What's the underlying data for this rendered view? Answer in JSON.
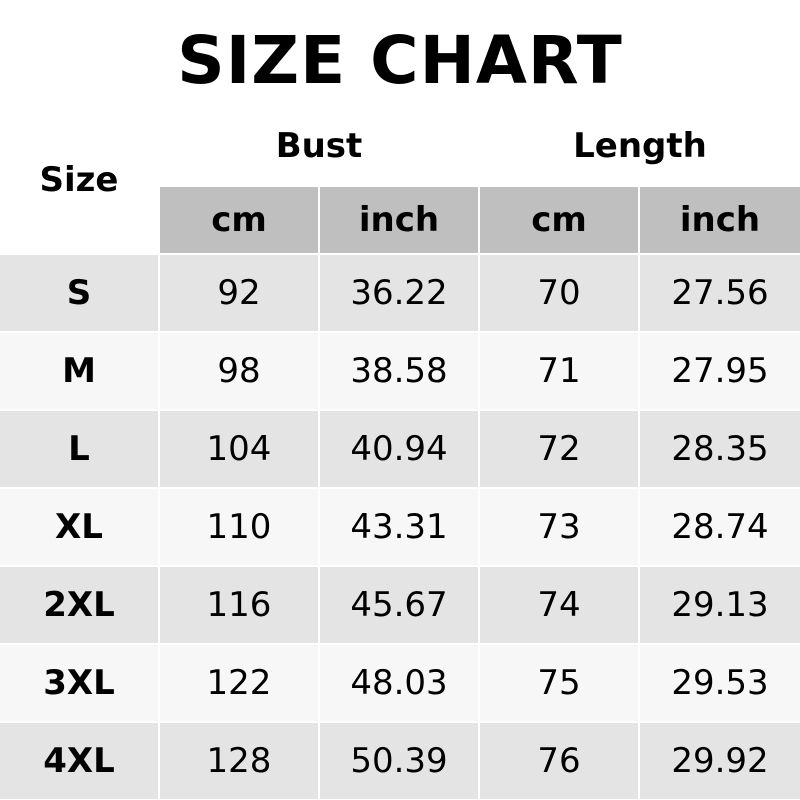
{
  "title": "SIZE CHART",
  "header": {
    "size_label": "Size",
    "groups": [
      "Bust",
      "Length"
    ],
    "units": [
      "cm",
      "inch",
      "cm",
      "inch"
    ]
  },
  "rows": [
    {
      "size": "S",
      "values": [
        "92",
        "36.22",
        "70",
        "27.56"
      ]
    },
    {
      "size": "M",
      "values": [
        "98",
        "38.58",
        "71",
        "27.95"
      ]
    },
    {
      "size": "L",
      "values": [
        "104",
        "40.94",
        "72",
        "28.35"
      ]
    },
    {
      "size": "XL",
      "values": [
        "110",
        "43.31",
        "73",
        "28.74"
      ]
    },
    {
      "size": "2XL",
      "values": [
        "116",
        "45.67",
        "74",
        "29.13"
      ]
    },
    {
      "size": "3XL",
      "values": [
        "122",
        "48.03",
        "75",
        "29.53"
      ]
    },
    {
      "size": "4XL",
      "values": [
        "128",
        "50.39",
        "76",
        "29.92"
      ]
    }
  ],
  "colors": {
    "header_bg": "#bfbfbf",
    "row_dark": "#e4e4e4",
    "row_light": "#f7f7f7"
  }
}
